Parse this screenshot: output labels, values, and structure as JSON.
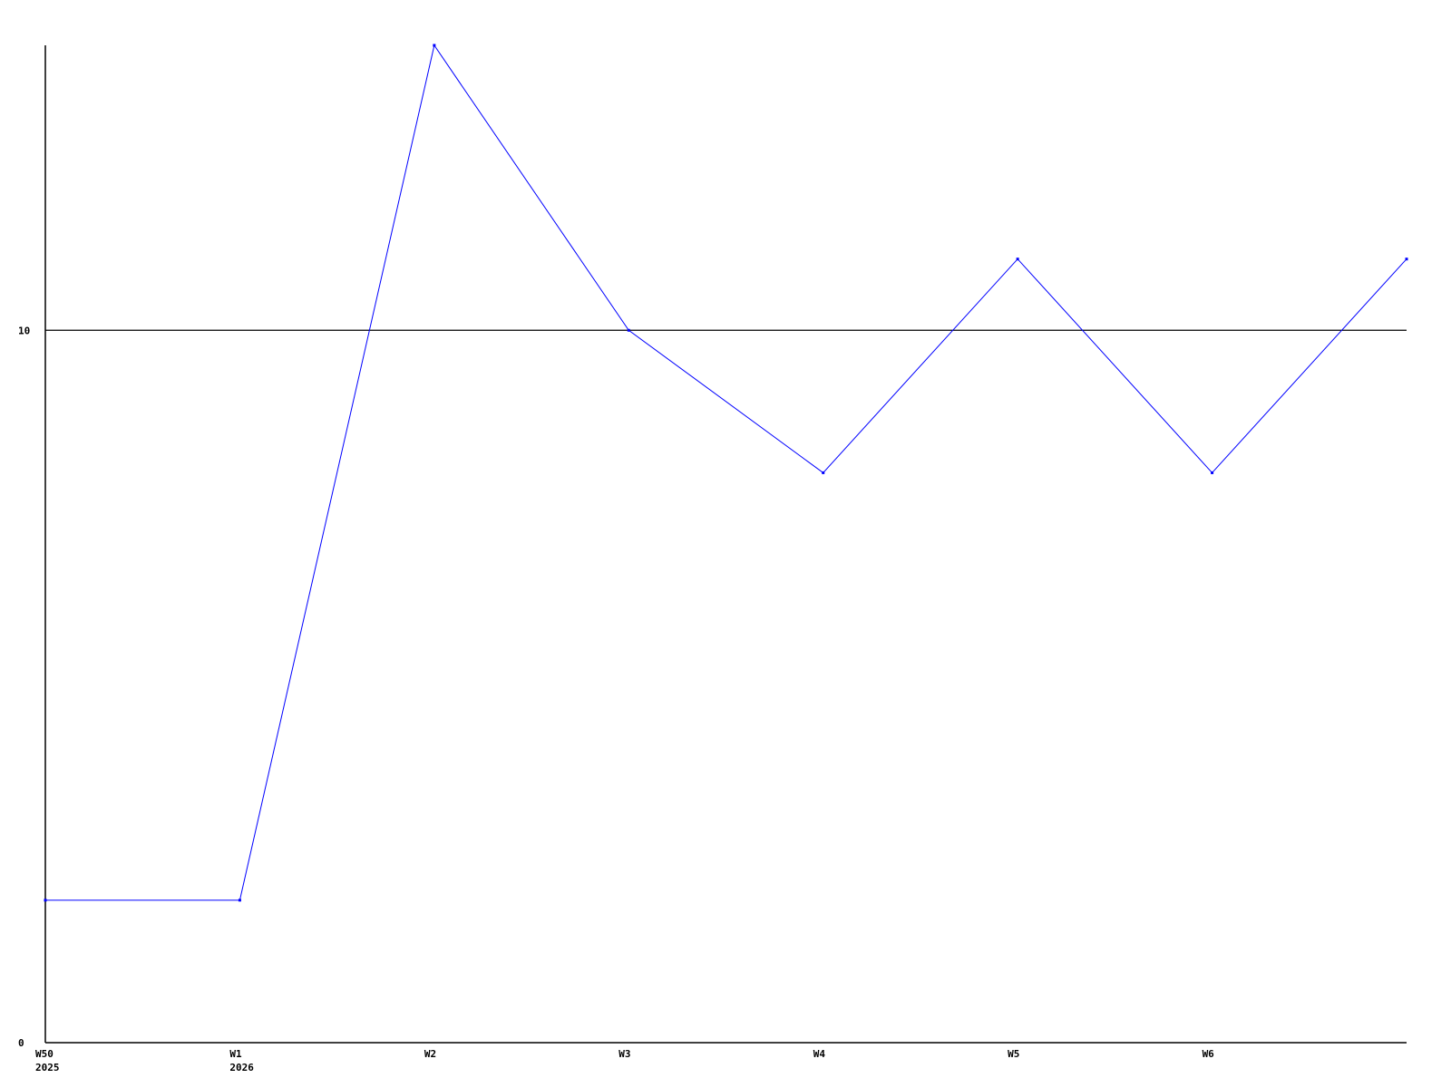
{
  "chart_data": {
    "type": "line",
    "title": "",
    "xlabel": "",
    "ylabel": "",
    "categories": [
      {
        "label": "W50",
        "sublabel": "2025"
      },
      {
        "label": "W1",
        "sublabel": "2026"
      },
      {
        "label": "W2",
        "sublabel": ""
      },
      {
        "label": "W3",
        "sublabel": ""
      },
      {
        "label": "W4",
        "sublabel": ""
      },
      {
        "label": "W5",
        "sublabel": ""
      },
      {
        "label": "W6",
        "sublabel": ""
      },
      {
        "label": "",
        "sublabel": ""
      }
    ],
    "series": [
      {
        "values": [
          2,
          2,
          14,
          10,
          8,
          11,
          8,
          11
        ],
        "color": "#0000ff"
      }
    ],
    "ylim": [
      0,
      14
    ],
    "yticks": [
      0,
      10
    ],
    "reference_lines": [
      10
    ],
    "grid": false,
    "legend": "none"
  }
}
